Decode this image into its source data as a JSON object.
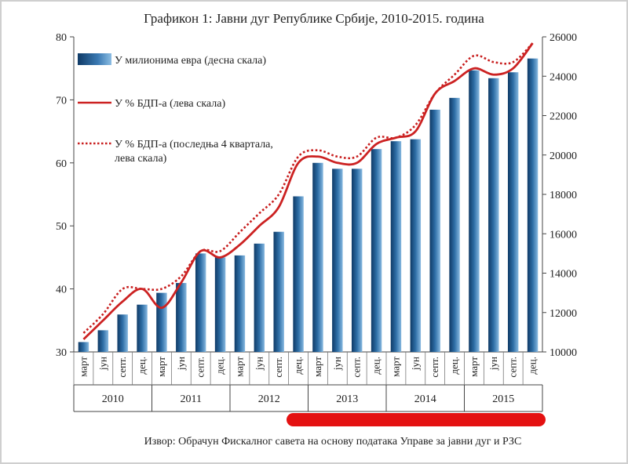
{
  "chart_data": {
    "type": "bar",
    "title": "Графикон 1: Јавни дуг Републике Србије, 2010-2015. година",
    "source": "Извор: Обрачун Фискалног савета на основу података Управе за јавни дуг и РЗС",
    "quarters": [
      "март",
      "јун",
      "септ.",
      "дец."
    ],
    "years": [
      "2010",
      "2011",
      "2012",
      "2013",
      "2014",
      "2015"
    ],
    "left_axis": {
      "min": 30,
      "max": 80,
      "ticks": [
        "30",
        "40",
        "50",
        "60",
        "70",
        "80"
      ]
    },
    "right_axis": {
      "min": 10000,
      "max": 26000,
      "ticks": [
        "10000",
        "12000",
        "14000",
        "16000",
        "18000",
        "20000",
        "22000",
        "24000",
        "26000"
      ]
    },
    "legend": [
      {
        "label": "У милионима евра (десна скала)",
        "kind": "bar"
      },
      {
        "label": "У % БДП-а (лева скала)",
        "kind": "line"
      },
      {
        "label_line1": "У % БДП-а (последња 4 квартала,",
        "label_line2": "лева скала)",
        "kind": "dotted"
      }
    ],
    "series": [
      {
        "name": "У милионима евра (десна скала)",
        "axis": "right",
        "values": [
          10500,
          11100,
          11900,
          12400,
          13000,
          13500,
          15000,
          14800,
          14900,
          15500,
          16100,
          17900,
          19600,
          19300,
          19300,
          20300,
          20700,
          20800,
          22300,
          22900,
          24300,
          23900,
          24200,
          24900
        ]
      },
      {
        "name": "У % БДП-а (лева скала)",
        "axis": "left",
        "values": [
          32,
          35,
          38,
          40,
          37,
          41,
          46,
          45,
          47,
          50,
          53,
          60,
          61,
          60,
          60,
          63,
          64,
          65,
          71,
          73,
          75,
          74,
          75,
          79
        ]
      },
      {
        "name": "У % БДП-а (последња 4 квартала, лева скала)",
        "axis": "left",
        "values": [
          33,
          36,
          40,
          40,
          40,
          42,
          46,
          46,
          49,
          52,
          55,
          61,
          62,
          61,
          61,
          64,
          64,
          66,
          71,
          74,
          77,
          76,
          76,
          79
        ]
      }
    ],
    "colors": {
      "bar_dark": "#12416e",
      "bar_light": "#7db0dc",
      "line": "#cc2222",
      "dotted": "#c81e1e",
      "highlight": "#e41111"
    }
  }
}
